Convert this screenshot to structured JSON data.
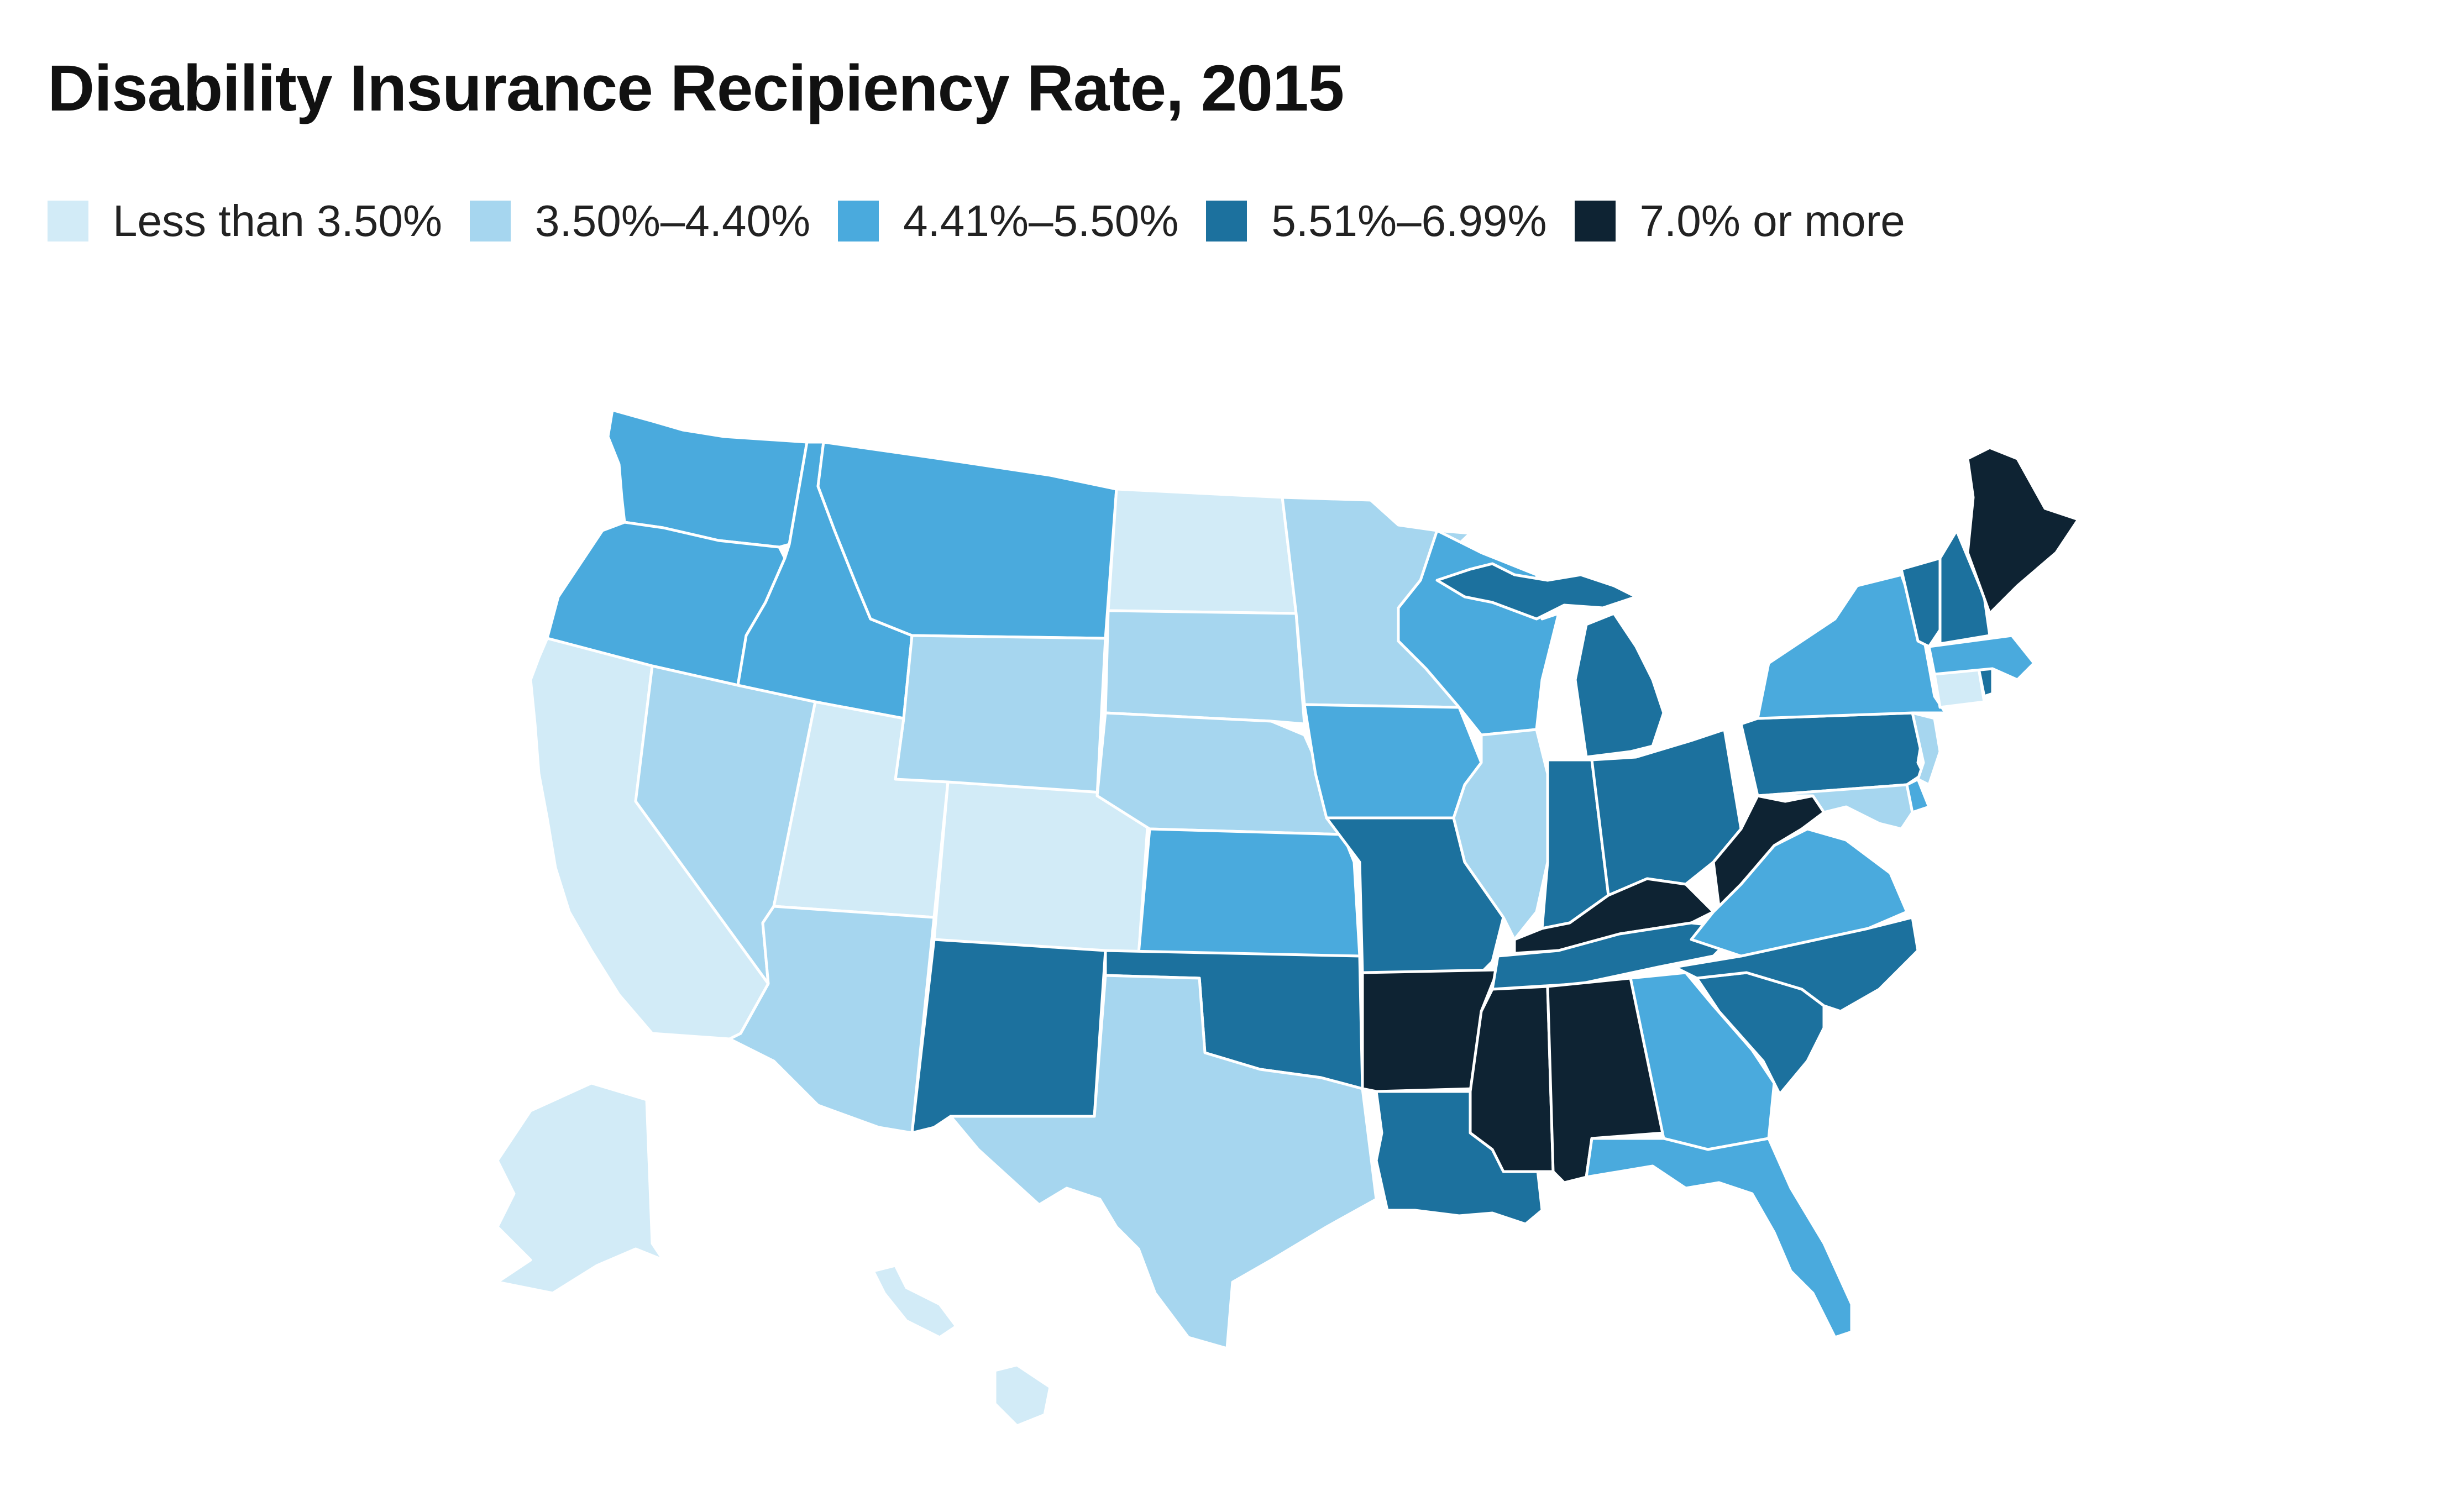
{
  "title": "Disability Insurance Recipiency Rate, 2015",
  "legend": [
    {
      "label": "Less than 3.50%",
      "color": "#d2ebf7"
    },
    {
      "label": "3.50%–4.40%",
      "color": "#a6d6ef"
    },
    {
      "label": "4.41%–5.50%",
      "color": "#4aaadd"
    },
    {
      "label": "5.51%–6.99%",
      "color": "#1c719e"
    },
    {
      "label": "7.0% or more",
      "color": "#0e2333"
    }
  ],
  "states": {
    "WA": 2,
    "OR": 2,
    "ID": 2,
    "MT": 2,
    "WI": 2,
    "IA": 2,
    "KS": 2,
    "NY": 2,
    "VA": 2,
    "GA": 2,
    "FL": 2,
    "MA": 2,
    "DE": 2,
    "CA": 0,
    "NV": 1,
    "UT": 0,
    "CO": 0,
    "ND": 0,
    "AK": 0,
    "HI": 0,
    "CT": 0,
    "AZ": 1,
    "WY": 1,
    "SD": 1,
    "NE": 1,
    "MN": 1,
    "TX": 1,
    "IL": 1,
    "NJ": 1,
    "MD": 1,
    "NM": 3,
    "OK": 3,
    "MO": 3,
    "LA": 3,
    "MI": 3,
    "IN": 3,
    "OH": 3,
    "PA": 3,
    "TN": 3,
    "NC": 3,
    "SC": 3,
    "VT": 3,
    "NH": 3,
    "RI": 3,
    "AR": 4,
    "MS": 4,
    "AL": 4,
    "KY": 4,
    "WV": 4,
    "ME": 4
  }
}
